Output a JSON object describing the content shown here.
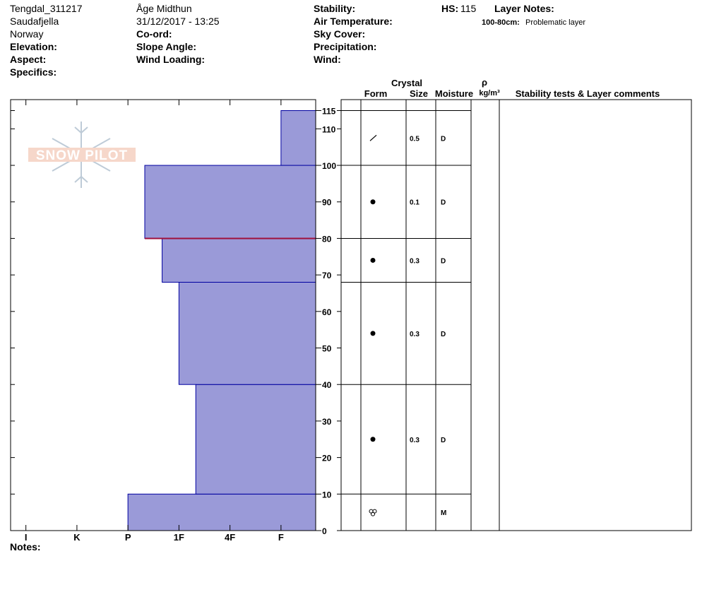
{
  "header": {
    "site": "Tengdal_311217",
    "area": "Saudafjella",
    "country": "Norway",
    "elevation_label": "Elevation:",
    "aspect_label": "Aspect:",
    "specifics_label": "Specifics:",
    "observer": "Åge Midthun",
    "datetime": "31/12/2017 - 13:25",
    "coord_label": "Co-ord:",
    "slope_label": "Slope Angle:",
    "wind_loading_label": "Wind Loading:",
    "stability_label": "Stability:",
    "air_temp_label": "Air Temperature:",
    "sky_label": "Sky Cover:",
    "precip_label": "Precipitation:",
    "wind_label": "Wind:",
    "hs_label": "HS:",
    "hs_value": 115,
    "layer_notes_label": "Layer Notes:",
    "layer_note_range": "100-80cm:",
    "layer_note_text": "Problematic layer",
    "logo": "SNOW PILOT"
  },
  "chart_data": {
    "type": "hardness-profile",
    "layers": [
      {
        "bottom": 0,
        "top": 10,
        "hardness": 4
      },
      {
        "bottom": 10,
        "top": 40,
        "hardness": 2.67
      },
      {
        "bottom": 40,
        "top": 68,
        "hardness": 3
      },
      {
        "bottom": 68,
        "top": 80,
        "hardness": 3.33
      },
      {
        "bottom": 80,
        "top": 100,
        "hardness": 3.67
      },
      {
        "bottom": 100,
        "top": 115,
        "hardness": 1
      }
    ],
    "color": "#9a9ad8",
    "edge_color": "#0000a0",
    "highlight_depth": 80,
    "highlight_color": "#a0103c",
    "xlim": [
      6.3,
      0.32
    ],
    "xticks": [
      {
        "value": 6,
        "label": "I"
      },
      {
        "value": 5,
        "label": "K"
      },
      {
        "value": 4,
        "label": "P"
      },
      {
        "value": 3,
        "label": "1F"
      },
      {
        "value": 2,
        "label": "4F"
      },
      {
        "value": 1,
        "label": "F"
      }
    ],
    "ylim": [
      0,
      118
    ],
    "yticks": [
      0,
      10,
      20,
      30,
      40,
      50,
      60,
      70,
      80,
      90,
      100,
      110,
      115
    ]
  },
  "table": {
    "headers": {
      "crystal": "Crystal",
      "form": "Form",
      "size": "Size",
      "moisture": "Moisture",
      "rho": "ρ",
      "density_unit": "kg/m³",
      "comments": "Stability tests & Layer comments"
    },
    "rows": [
      {
        "size": null,
        "moisture": "M"
      },
      {
        "size": 0.3,
        "moisture": "D"
      },
      {
        "size": 0.3,
        "moisture": "D"
      },
      {
        "size": 0.3,
        "moisture": "D"
      },
      {
        "size": 0.1,
        "moisture": "D"
      },
      {
        "size": 0.5,
        "moisture": "D"
      }
    ]
  },
  "notes_label": "Notes:"
}
